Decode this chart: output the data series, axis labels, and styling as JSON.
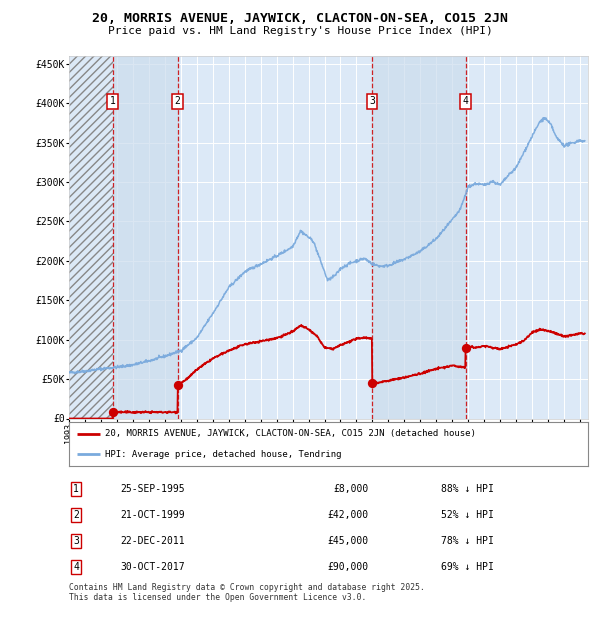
{
  "title": "20, MORRIS AVENUE, JAYWICK, CLACTON-ON-SEA, CO15 2JN",
  "subtitle": "Price paid vs. HM Land Registry's House Price Index (HPI)",
  "background_color": "#ffffff",
  "plot_bg_color": "#dce9f7",
  "sale_dates": [
    1995.73,
    1999.8,
    2011.97,
    2017.83
  ],
  "sale_prices": [
    8000,
    42000,
    45000,
    90000
  ],
  "sale_labels": [
    "1",
    "2",
    "3",
    "4"
  ],
  "legend_entries": [
    "20, MORRIS AVENUE, JAYWICK, CLACTON-ON-SEA, CO15 2JN (detached house)",
    "HPI: Average price, detached house, Tendring"
  ],
  "table_rows": [
    [
      "1",
      "25-SEP-1995",
      "£8,000",
      "88% ↓ HPI"
    ],
    [
      "2",
      "21-OCT-1999",
      "£42,000",
      "52% ↓ HPI"
    ],
    [
      "3",
      "22-DEC-2011",
      "£45,000",
      "78% ↓ HPI"
    ],
    [
      "4",
      "30-OCT-2017",
      "£90,000",
      "69% ↓ HPI"
    ]
  ],
  "footer": "Contains HM Land Registry data © Crown copyright and database right 2025.\nThis data is licensed under the Open Government Licence v3.0.",
  "red_color": "#cc0000",
  "blue_color": "#7aaadd",
  "shade_color": "#ccdded",
  "xlim": [
    1993.0,
    2025.5
  ],
  "ylim": [
    0,
    460000
  ],
  "hpi_knots_x": [
    1993.0,
    1994.0,
    1995.0,
    1995.5,
    1996.0,
    1997.0,
    1998.0,
    1999.0,
    2000.0,
    2001.0,
    2002.0,
    2003.0,
    2004.0,
    2005.0,
    2006.0,
    2007.0,
    2007.5,
    2008.3,
    2009.2,
    2009.7,
    2010.0,
    2010.5,
    2011.0,
    2011.5,
    2012.0,
    2012.5,
    2013.0,
    2014.0,
    2015.0,
    2016.0,
    2017.0,
    2017.5,
    2018.0,
    2018.5,
    2019.0,
    2019.5,
    2020.0,
    2020.5,
    2021.0,
    2021.5,
    2022.0,
    2022.5,
    2022.8,
    2023.2,
    2023.5,
    2024.0,
    2024.5,
    2025.0,
    2025.3
  ],
  "hpi_knots_y": [
    58000,
    60000,
    63000,
    64000,
    65000,
    68000,
    73000,
    79000,
    86000,
    102000,
    133000,
    166000,
    186000,
    196000,
    206000,
    218000,
    238000,
    225000,
    175000,
    182000,
    190000,
    196000,
    200000,
    203000,
    196000,
    193000,
    194000,
    202000,
    212000,
    228000,
    252000,
    265000,
    294000,
    298000,
    296000,
    301000,
    296000,
    308000,
    318000,
    338000,
    358000,
    377000,
    381000,
    372000,
    357000,
    346000,
    349000,
    353000,
    351000
  ],
  "red_knots_x": [
    1993.0,
    1995.73,
    1995.731,
    1999.8,
    1999.801,
    2000.5,
    2001.0,
    2002.0,
    2003.0,
    2004.0,
    2005.0,
    2006.0,
    2007.0,
    2007.5,
    2008.0,
    2008.5,
    2009.0,
    2009.5,
    2010.0,
    2010.5,
    2011.0,
    2011.5,
    2011.97,
    2011.971,
    2012.5,
    2013.0,
    2014.0,
    2015.0,
    2016.0,
    2017.0,
    2017.83,
    2017.831,
    2018.0,
    2018.5,
    2019.0,
    2019.5,
    2020.0,
    2020.5,
    2021.0,
    2021.5,
    2022.0,
    2022.5,
    2023.0,
    2023.5,
    2024.0,
    2024.5,
    2025.0,
    2025.3
  ],
  "red_knots_y": [
    0,
    0,
    8000,
    8000,
    42000,
    52000,
    62000,
    76000,
    86000,
    94000,
    98000,
    102000,
    110000,
    118000,
    113000,
    105000,
    90000,
    88000,
    93000,
    97000,
    101000,
    103000,
    101000,
    45000,
    46000,
    48000,
    52000,
    57000,
    63000,
    67000,
    65000,
    90000,
    91000,
    90000,
    92000,
    90000,
    88000,
    91000,
    94000,
    99000,
    109000,
    113000,
    111000,
    108000,
    104000,
    106000,
    108000,
    107000
  ]
}
